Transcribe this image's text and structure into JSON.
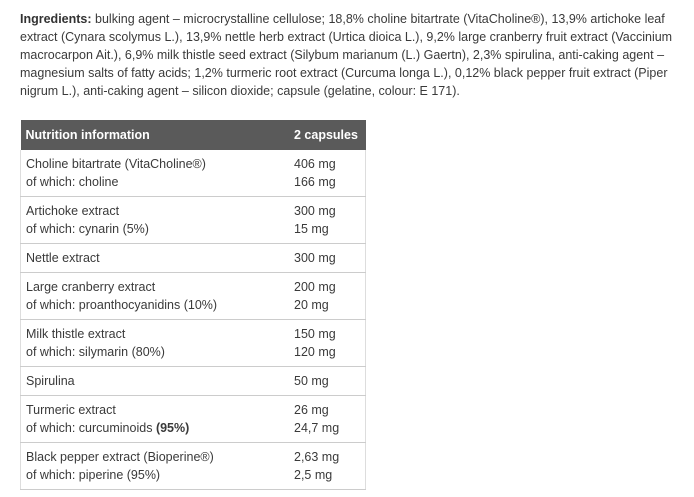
{
  "ingredients": {
    "label": "Ingredients:",
    "text": "bulking agent – microcrystalline cellulose; 18,8% choline bitartrate (VitaCholine®), 13,9% artichoke leaf extract (Cynara scolymus L.), 13,9% nettle herb extract (Urtica dioica L.), 9,2% large cranberry fruit extract (Vaccinium macrocarpon Ait.), 6,9% milk thistle seed extract (Silybum marianum (L.) Gaertn), 2,3% spirulina, anti-caking agent – magnesium salts of fatty acids; 1,2% turmeric root extract (Curcuma longa L.), 0,12% black pepper fruit extract (Piper nigrum L.), anti-caking agent – silicon dioxide; capsule (gelatine, colour: E 171)."
  },
  "table": {
    "header": [
      "Nutrition information",
      "2 capsules"
    ],
    "rows": [
      {
        "name": [
          "Choline bitartrate (VitaCholine®)",
          "of which: choline"
        ],
        "amount": [
          "406 mg",
          "166 mg"
        ]
      },
      {
        "name": [
          "Artichoke extract",
          "of which: cynarin (5%)"
        ],
        "amount": [
          "300 mg",
          "15 mg"
        ]
      },
      {
        "name": [
          "Nettle extract"
        ],
        "amount": [
          "300 mg"
        ]
      },
      {
        "name": [
          "Large cranberry extract",
          "of which: proanthocyanidins (10%)"
        ],
        "amount": [
          "200 mg",
          "20 mg"
        ]
      },
      {
        "name": [
          "Milk thistle extract",
          "of which: silymarin (80%)"
        ],
        "amount": [
          "150 mg",
          "120 mg"
        ]
      },
      {
        "name": [
          "Spirulina"
        ],
        "amount": [
          "50 mg"
        ]
      },
      {
        "name": [
          "Turmeric extract",
          {
            "text": "of which: curcuminoids",
            "bold_text": "(95%)"
          }
        ],
        "amount": [
          "26 mg",
          "24,7 mg"
        ]
      },
      {
        "name": [
          "Black pepper extract (Bioperine®)",
          "of which: piperine (95%)"
        ],
        "amount": [
          "2,63 mg",
          "2,5 mg"
        ]
      }
    ]
  }
}
